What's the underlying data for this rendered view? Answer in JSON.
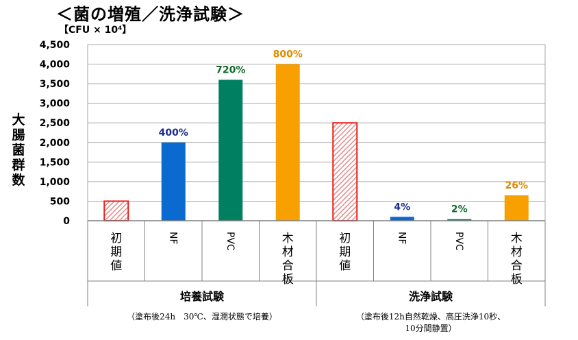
{
  "title": "＜菌の増殖／洗浄試験＞",
  "unit": "【CFU × 10⁴】",
  "chart_data": {
    "type": "bar",
    "ylabel": "大腸菌群数",
    "ylim": [
      0,
      4500
    ],
    "y_ticks": [
      "0",
      "500",
      "1,000",
      "1,500",
      "2,000",
      "2,500",
      "3,000",
      "3,500",
      "4,000",
      "4,500"
    ],
    "grid": true,
    "categories": [
      "初期値",
      "NF",
      "PVC",
      "木材合板",
      "初期値",
      "NF",
      "PVC",
      "木材合板"
    ],
    "values": [
      500,
      2000,
      3600,
      4000,
      2500,
      100,
      40,
      650
    ],
    "data_labels": [
      "",
      "400%",
      "720%",
      "800%",
      "",
      "4%",
      "2%",
      "26%"
    ],
    "colors": [
      "#e8a5a5",
      "#0a6ad0",
      "#008060",
      "#f8a000",
      "#e8a5a5",
      "#0a6ad0",
      "#008060",
      "#f8a000"
    ],
    "label_colors": [
      "",
      "#1a2c8c",
      "#0f6a2a",
      "#e08800",
      "",
      "#1a2c8c",
      "#0f6a2a",
      "#e08800"
    ],
    "hatched": [
      true,
      false,
      false,
      false,
      true,
      false,
      false,
      false
    ],
    "groups": [
      {
        "name": "培養試験",
        "note": "（塗布後24h　30℃、湿潤状態で培養）"
      },
      {
        "name": "洗浄試験",
        "note": "（塗布後12h自然乾燥、高圧洗浄10秒、10分間静置）"
      }
    ]
  }
}
